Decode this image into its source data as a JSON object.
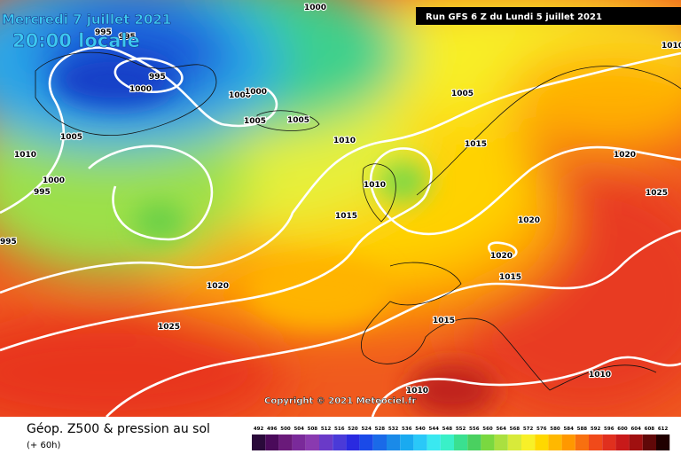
{
  "header": {
    "date": "Mercredi 7 juillet 2021",
    "time": "20:00 locale",
    "run": "Run GFS 6 Z du Lundi 5 juillet 2021"
  },
  "isobar_labels": [
    "1000",
    "995",
    "995",
    "995",
    "1000",
    "1000",
    "1000",
    "1005",
    "1005",
    "1005",
    "1005",
    "1010",
    "1010",
    "1015",
    "1020",
    "1000",
    "995",
    "1010",
    "1025",
    "1015",
    "1020",
    "995",
    "1020",
    "1015",
    "1020",
    "1015",
    "1025",
    "1010",
    "1010",
    "1010"
  ],
  "copyright": "Copyright © 2021 Meteociel.fr",
  "footer": {
    "title": "Géop. Z500 & pression au sol",
    "lead": "(+ 60h)"
  },
  "legend": [
    {
      "value": 492,
      "color": "#2a0a3a"
    },
    {
      "value": 496,
      "color": "#4a0a5a"
    },
    {
      "value": 500,
      "color": "#6a1a7a"
    },
    {
      "value": 504,
      "color": "#7a2a9a"
    },
    {
      "value": 508,
      "color": "#8a3ab0"
    },
    {
      "value": 512,
      "color": "#6a3ac8"
    },
    {
      "value": 516,
      "color": "#4a3ad8"
    },
    {
      "value": 520,
      "color": "#2a2ae0"
    },
    {
      "value": 524,
      "color": "#1a4ae8"
    },
    {
      "value": 528,
      "color": "#1a6ae8"
    },
    {
      "value": 532,
      "color": "#1a8ae8"
    },
    {
      "value": 536,
      "color": "#1aaaf0"
    },
    {
      "value": 540,
      "color": "#2ac8f8"
    },
    {
      "value": 544,
      "color": "#3ae8f0"
    },
    {
      "value": 548,
      "color": "#3af0c8"
    },
    {
      "value": 552,
      "color": "#3ae090"
    },
    {
      "value": 556,
      "color": "#4ad060"
    },
    {
      "value": 560,
      "color": "#7ad840"
    },
    {
      "value": 564,
      "color": "#aae040"
    },
    {
      "value": 568,
      "color": "#d8ea3a"
    },
    {
      "value": 572,
      "color": "#f8f028"
    },
    {
      "value": 576,
      "color": "#ffd800"
    },
    {
      "value": 580,
      "color": "#ffb800"
    },
    {
      "value": 584,
      "color": "#ff9800"
    },
    {
      "value": 588,
      "color": "#f87010"
    },
    {
      "value": 592,
      "color": "#f04a1a"
    },
    {
      "value": 596,
      "color": "#e0301e"
    },
    {
      "value": 600,
      "color": "#c81a1a"
    },
    {
      "value": 604,
      "color": "#a01010"
    },
    {
      "value": 608,
      "color": "#600808"
    },
    {
      "value": 612,
      "color": "#200000"
    }
  ]
}
